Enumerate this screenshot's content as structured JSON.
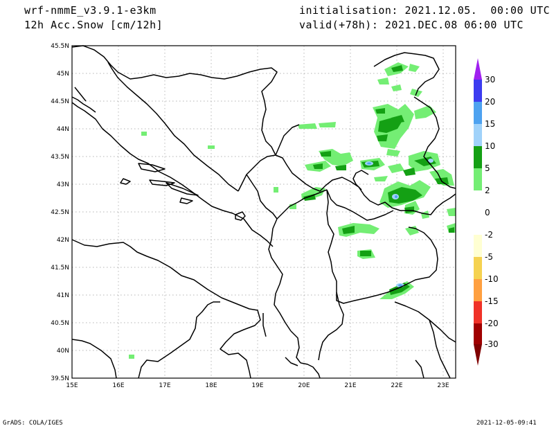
{
  "header": {
    "model": "wrf-nmmE_v3.9.1-e3km",
    "variable": "12h Acc.Snow [cm/12h]",
    "init": "initialisation: 2021.12.05.  00:00 UTC",
    "valid": "valid(+78h): 2021.DEC.08 06:00 UTC"
  },
  "footer": {
    "left": "GrADS: COLA/IGES",
    "right": "2021-12-05-09:41"
  },
  "map": {
    "lat_labels": [
      "45.5N",
      "45N",
      "44.5N",
      "44N",
      "43.5N",
      "43N",
      "42.5N",
      "42N",
      "41.5N",
      "41N",
      "40.5N",
      "40N",
      "39.5N"
    ],
    "lon_labels": [
      "15E",
      "16E",
      "17E",
      "18E",
      "19E",
      "20E",
      "21E",
      "22E",
      "23E"
    ]
  },
  "colorbar": {
    "levels": [
      "30",
      "20",
      "15",
      "10",
      "5",
      "2",
      "0",
      "-2",
      "-5",
      "-10",
      "-15",
      "-20",
      "-30"
    ],
    "colors": {
      "top_arrow": "#a020f0",
      "c20_30": "#3c3cf0",
      "c15_20": "#4ea2f0",
      "c10_15": "#a0d2fa",
      "c5_10": "#14a014",
      "c2_5": "#74ee74",
      "c0": "#ffffff",
      "cm2": "#ffffd2",
      "cm5": "#f5d250",
      "cm10": "#ffa040",
      "cm15": "#f03228",
      "cm20": "#e00000",
      "cm30": "#a00000",
      "bottom_arrow": "#800000"
    }
  }
}
